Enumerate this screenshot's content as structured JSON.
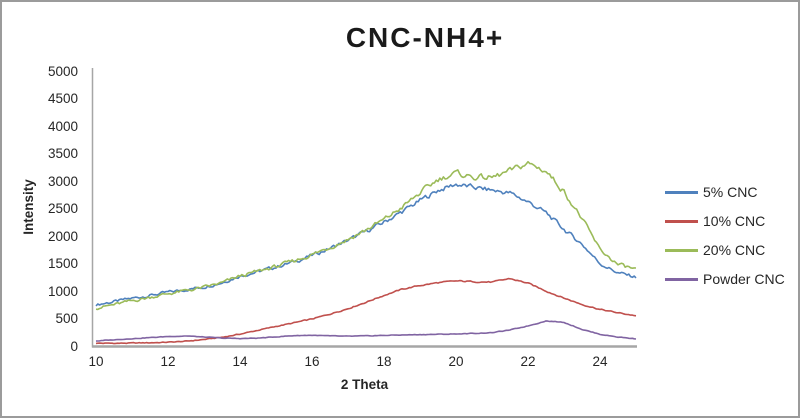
{
  "chart_data": {
    "type": "line",
    "title": "CNC-NH4+",
    "xlabel": "2 Theta",
    "ylabel": "Intensity",
    "xlim": [
      10,
      25
    ],
    "ylim": [
      0,
      5000
    ],
    "x_ticks": [
      10,
      12,
      14,
      16,
      18,
      20,
      22,
      24
    ],
    "y_ticks": [
      0,
      500,
      1000,
      1500,
      2000,
      2500,
      3000,
      3500,
      4000,
      4500,
      5000
    ],
    "grid": false,
    "legend_position": "right",
    "axis_color": "#A6A6A6",
    "text_color": "#262626",
    "series": [
      {
        "name": "5% CNC",
        "color": "#4F81BD",
        "noise": 45,
        "points": [
          [
            10,
            760
          ],
          [
            10.5,
            815
          ],
          [
            11,
            875
          ],
          [
            11.5,
            930
          ],
          [
            12,
            985
          ],
          [
            12.5,
            1035
          ],
          [
            13,
            1085
          ],
          [
            13.5,
            1165
          ],
          [
            14,
            1285
          ],
          [
            14.5,
            1360
          ],
          [
            15,
            1445
          ],
          [
            15.5,
            1540
          ],
          [
            16,
            1655
          ],
          [
            16.5,
            1785
          ],
          [
            17,
            1930
          ],
          [
            17.5,
            2090
          ],
          [
            18,
            2260
          ],
          [
            18.5,
            2450
          ],
          [
            19,
            2650
          ],
          [
            19.5,
            2840
          ],
          [
            20,
            2950
          ],
          [
            20.5,
            2890
          ],
          [
            21,
            2840
          ],
          [
            21.5,
            2790
          ],
          [
            22,
            2630
          ],
          [
            22.5,
            2430
          ],
          [
            23,
            2130
          ],
          [
            23.5,
            1860
          ],
          [
            24,
            1510
          ],
          [
            24.5,
            1340
          ],
          [
            25,
            1260
          ]
        ]
      },
      {
        "name": "10% CNC",
        "color": "#C0504D",
        "noise": 18,
        "points": [
          [
            10,
            60
          ],
          [
            10.5,
            58
          ],
          [
            11,
            62
          ],
          [
            11.5,
            68
          ],
          [
            12,
            78
          ],
          [
            12.5,
            95
          ],
          [
            13,
            128
          ],
          [
            13.5,
            168
          ],
          [
            14,
            225
          ],
          [
            14.5,
            295
          ],
          [
            15,
            365
          ],
          [
            15.5,
            430
          ],
          [
            16,
            500
          ],
          [
            16.5,
            590
          ],
          [
            17,
            690
          ],
          [
            17.5,
            805
          ],
          [
            18,
            930
          ],
          [
            18.5,
            1040
          ],
          [
            19,
            1110
          ],
          [
            19.5,
            1160
          ],
          [
            20,
            1190
          ],
          [
            20.5,
            1180
          ],
          [
            21,
            1170
          ],
          [
            21.5,
            1235
          ],
          [
            22,
            1150
          ],
          [
            22.5,
            1010
          ],
          [
            23,
            880
          ],
          [
            23.5,
            765
          ],
          [
            24,
            675
          ],
          [
            24.5,
            612
          ],
          [
            25,
            560
          ]
        ]
      },
      {
        "name": "20% CNC",
        "color": "#9BBB59",
        "noise": 48,
        "points": [
          [
            10,
            700
          ],
          [
            10.5,
            760
          ],
          [
            11,
            830
          ],
          [
            11.5,
            895
          ],
          [
            12,
            960
          ],
          [
            12.5,
            1015
          ],
          [
            13,
            1075
          ],
          [
            13.5,
            1155
          ],
          [
            14,
            1280
          ],
          [
            14.5,
            1365
          ],
          [
            15,
            1455
          ],
          [
            15.5,
            1555
          ],
          [
            16,
            1670
          ],
          [
            16.5,
            1805
          ],
          [
            17,
            1950
          ],
          [
            17.5,
            2120
          ],
          [
            18,
            2305
          ],
          [
            18.5,
            2530
          ],
          [
            19,
            2790
          ],
          [
            19.5,
            3040
          ],
          [
            20,
            3150
          ],
          [
            20.5,
            3080
          ],
          [
            21,
            3070
          ],
          [
            21.5,
            3190
          ],
          [
            22,
            3330
          ],
          [
            22.5,
            3190
          ],
          [
            23,
            2820
          ],
          [
            23.5,
            2320
          ],
          [
            24,
            1760
          ],
          [
            24.5,
            1490
          ],
          [
            25,
            1400
          ]
        ]
      },
      {
        "name": "Powder CNC",
        "color": "#8064A2",
        "noise": 12,
        "points": [
          [
            10,
            100
          ],
          [
            10.5,
            122
          ],
          [
            11,
            142
          ],
          [
            11.5,
            162
          ],
          [
            12,
            182
          ],
          [
            12.5,
            192
          ],
          [
            13,
            172
          ],
          [
            13.5,
            152
          ],
          [
            14,
            145
          ],
          [
            14.5,
            152
          ],
          [
            15,
            175
          ],
          [
            15.5,
            198
          ],
          [
            16,
            205
          ],
          [
            16.5,
            192
          ],
          [
            17,
            186
          ],
          [
            17.5,
            192
          ],
          [
            18,
            202
          ],
          [
            18.5,
            210
          ],
          [
            19,
            216
          ],
          [
            19.5,
            222
          ],
          [
            20,
            228
          ],
          [
            20.5,
            238
          ],
          [
            21,
            252
          ],
          [
            21.5,
            300
          ],
          [
            22,
            375
          ],
          [
            22.5,
            465
          ],
          [
            23,
            440
          ],
          [
            23.5,
            312
          ],
          [
            24,
            222
          ],
          [
            24.5,
            172
          ],
          [
            25,
            140
          ]
        ]
      }
    ]
  }
}
